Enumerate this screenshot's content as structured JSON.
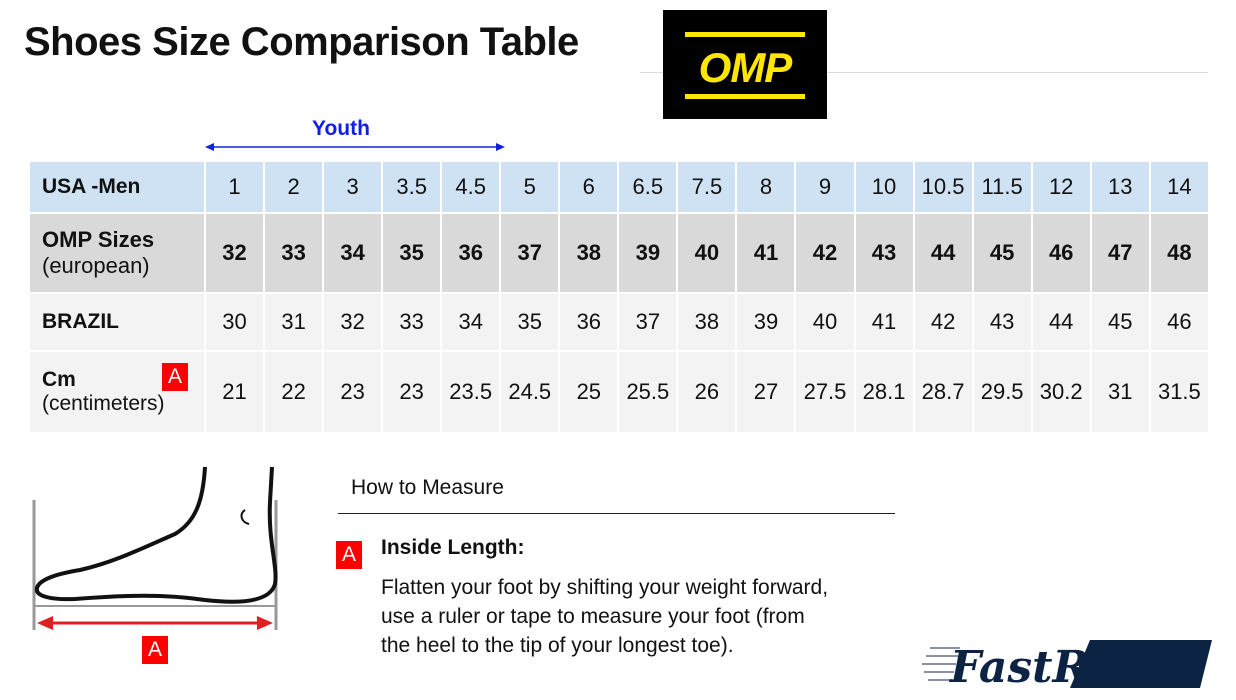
{
  "title": "Shoes Size Comparison Table",
  "brand_logo": {
    "text": "OMP",
    "bg": "#000000",
    "color": "#ffe600"
  },
  "youth_label": "Youth",
  "table": {
    "rows": [
      {
        "label": "USA -Men",
        "sublabel": "",
        "values": [
          "1",
          "2",
          "3",
          "3.5",
          "4.5",
          "5",
          "6",
          "6.5",
          "7.5",
          "8",
          "9",
          "10",
          "10.5",
          "11.5",
          "12",
          "13",
          "14"
        ]
      },
      {
        "label": "OMP Sizes",
        "sublabel": "(european)",
        "values": [
          "32",
          "33",
          "34",
          "35",
          "36",
          "37",
          "38",
          "39",
          "40",
          "41",
          "42",
          "43",
          "44",
          "45",
          "46",
          "47",
          "48"
        ]
      },
      {
        "label": "BRAZIL",
        "sublabel": "",
        "values": [
          "30",
          "31",
          "32",
          "33",
          "34",
          "35",
          "36",
          "37",
          "38",
          "39",
          "40",
          "41",
          "42",
          "43",
          "44",
          "45",
          "46"
        ]
      },
      {
        "label": "Cm",
        "sublabel": "(centimeters)",
        "values": [
          "21",
          "22",
          "23",
          "23",
          "23.5",
          "24.5",
          "25",
          "25.5",
          "26",
          "27",
          "27.5",
          "28.1",
          "28.7",
          "29.5",
          "30.2",
          "31",
          "31.5"
        ]
      }
    ]
  },
  "marker": "A",
  "measure": {
    "heading": "How to Measure",
    "item_title": "Inside Length:",
    "lines": [
      "Flatten your foot by shifting your weight forward,",
      "use a ruler or tape to measure your foot (from",
      "the heel to the tip of your longest toe)."
    ]
  },
  "footer_logo": {
    "text": "FastRacer",
    "color": "#0d2344"
  },
  "colors": {
    "header_row": "#cfe2f3",
    "omp_row": "#d9d9d9",
    "other_rows": "#f3f3f3",
    "badge": "#ff0000",
    "youth": "#1020e0"
  }
}
